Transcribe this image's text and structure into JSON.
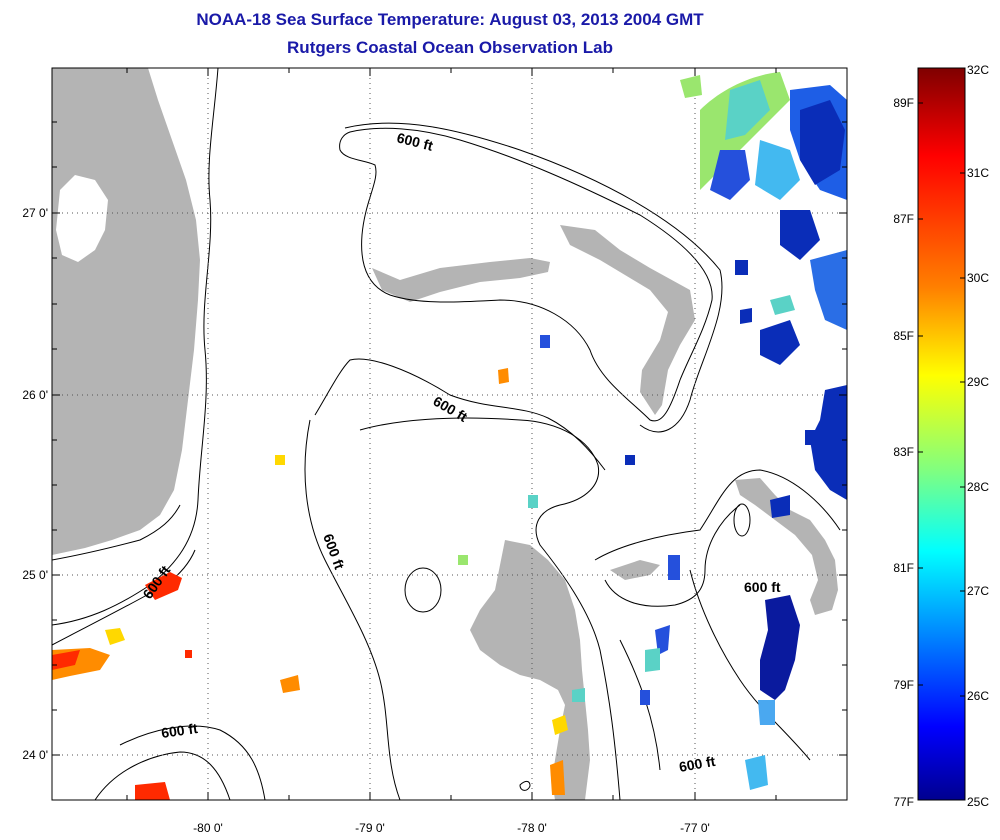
{
  "header": {
    "title": "NOAA-18 Sea Surface Temperature:  August 03, 2013 2004 GMT",
    "subtitle": "Rutgers Coastal Ocean Observation Lab"
  },
  "map": {
    "lat_labels": [
      "27 0'",
      "26 0'",
      "25 0'",
      "24 0'"
    ],
    "lon_labels": [
      "-80 0'",
      "-79 0'",
      "-78 0'",
      "-77 0'"
    ],
    "depth_labels": [
      "600 ft",
      "600 ft",
      "600 ft",
      "600 ft",
      "600 ft",
      "600 ft"
    ],
    "land_color": "#b4b4b4"
  },
  "colorbar": {
    "celsius_labels": [
      "32C",
      "31C",
      "30C",
      "29C",
      "28C",
      "27C",
      "26C",
      "25C"
    ],
    "fahrenheit_labels": [
      "89F",
      "87F",
      "85F",
      "83F",
      "81F",
      "79F",
      "77F"
    ],
    "stops": [
      "#7f0000",
      "#ff0000",
      "#ff8000",
      "#ffff00",
      "#80ff80",
      "#00ffff",
      "#0080ff",
      "#0000ff",
      "#00008f"
    ]
  }
}
